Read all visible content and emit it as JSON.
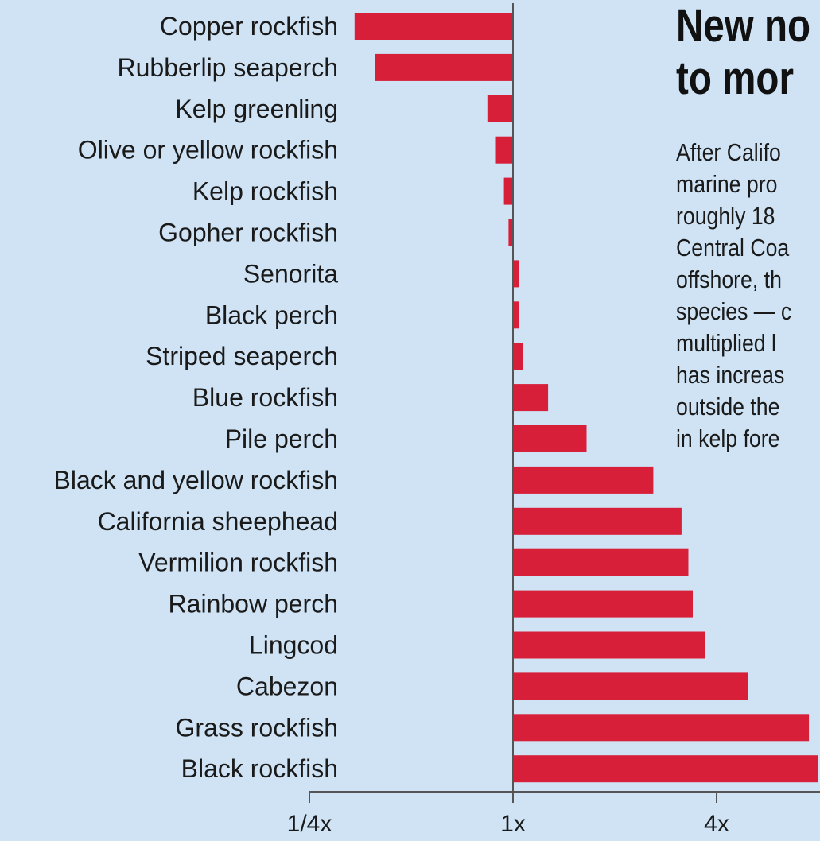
{
  "header": {
    "headline": [
      "New no",
      "to mor"
    ],
    "body_lines": [
      "After Califo",
      "marine pro",
      "roughly 18",
      "Central Coa",
      "offshore, th",
      "species — c",
      "multiplied l",
      "has increas",
      "outside the",
      "in kelp fore"
    ]
  },
  "chart_data": {
    "type": "bar",
    "orientation": "horizontal",
    "x_scale": "log2",
    "categories": [
      "Copper rockfish",
      "Rubberlip seaperch",
      "Kelp greenling",
      "Olive or yellow rockfish",
      "Kelp rockfish",
      "Gopher rockfish",
      "Senorita",
      "Black perch",
      "Striped seaperch",
      "Blue rockfish",
      "Pile perch",
      "Black and yellow rockfish",
      "California sheephead",
      "Vermilion rockfish",
      "Rainbow perch",
      "Lingcod",
      "Cabezon",
      "Grass rockfish",
      "Black rockfish"
    ],
    "values": [
      0.34,
      0.39,
      0.84,
      0.89,
      0.94,
      0.97,
      1.04,
      1.04,
      1.07,
      1.27,
      1.65,
      2.6,
      3.15,
      3.3,
      3.4,
      3.7,
      4.95,
      7.5,
      8.8
    ],
    "xticks": [
      {
        "value": 0.25,
        "label": "1/4x"
      },
      {
        "value": 1,
        "label": "1x"
      },
      {
        "value": 4,
        "label": "4x"
      }
    ],
    "colors": {
      "bar": "#d81f3a",
      "axis": "#555555",
      "background": "#cfe3f4"
    }
  }
}
